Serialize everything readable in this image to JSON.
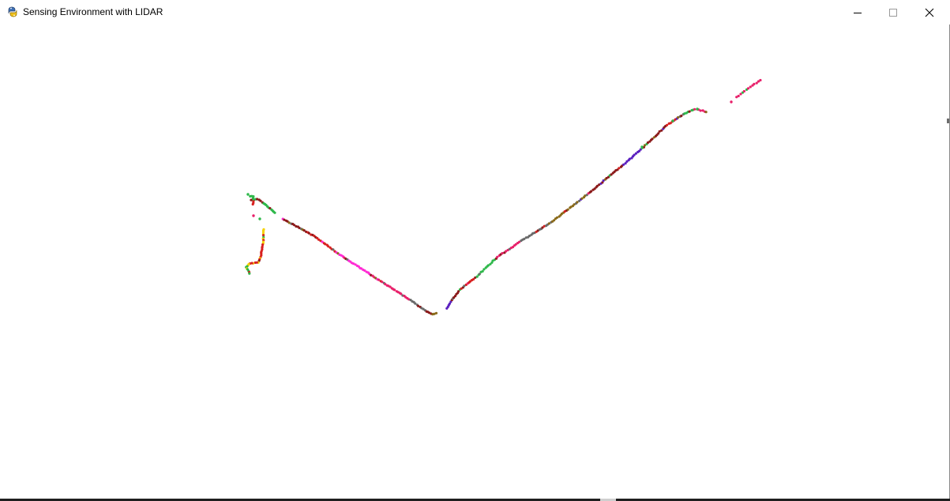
{
  "window": {
    "title": "Sensing Environment with LIDAR",
    "icon": "pygame-snake-icon",
    "controls": [
      "minimize-icon",
      "maximize-icon",
      "close-icon"
    ]
  },
  "lidar_scan": {
    "background": "#ffffff",
    "point_colors": [
      "#8b1a1a",
      "#d8201f",
      "#e8206a",
      "#ff2ad4",
      "#2eb84a",
      "#8a6a1a",
      "#5a1fbf",
      "#6a6a6a",
      "#f5d200"
    ]
  }
}
